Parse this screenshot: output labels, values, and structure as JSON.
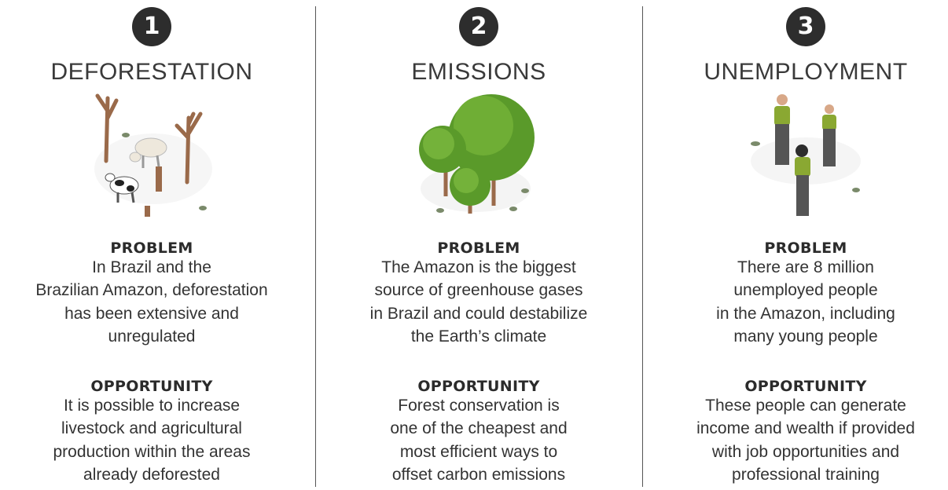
{
  "columns": [
    {
      "number": "1",
      "title": "DEFORESTATION",
      "problem": {
        "heading": "PROBLEM",
        "lines": [
          "In Brazil and the",
          "Brazilian Amazon, deforestation",
          "has been extensive and",
          "unregulated"
        ]
      },
      "opportunity": {
        "heading": "OPPORTUNITY",
        "lines": [
          "It is possible to increase",
          "livestock and agricultural",
          "production within the areas",
          "already deforested"
        ]
      }
    },
    {
      "number": "2",
      "title": "EMISSIONS",
      "problem": {
        "heading": "PROBLEM",
        "lines": [
          "The Amazon is the biggest",
          "source of greenhouse gases",
          "in Brazil and could destabilize",
          "the Earth’s climate"
        ]
      },
      "opportunity": {
        "heading": "OPPORTUNITY",
        "lines": [
          "Forest conservation is",
          "one of the cheapest and",
          "most efficient ways to",
          "offset carbon emissions"
        ]
      }
    },
    {
      "number": "3",
      "title": "UNEMPLOYMENT",
      "problem": {
        "heading": "PROBLEM",
        "lines": [
          "There are 8 million",
          "unemployed people",
          "in the Amazon, including",
          "many young people"
        ]
      },
      "opportunity": {
        "heading": "OPPORTUNITY",
        "lines": [
          "These people can generate",
          "income and wealth if provided",
          "with job opportunities and",
          "professional training"
        ]
      }
    }
  ]
}
